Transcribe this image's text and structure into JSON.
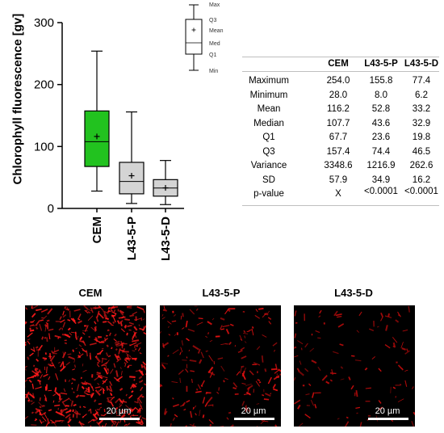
{
  "chart_data": {
    "type": "box",
    "ylabel": "Chlorophyll fluorescence [gv]",
    "ylim": [
      0,
      300
    ],
    "yticks": [
      0,
      100,
      200,
      300
    ],
    "categories": [
      "CEM",
      "L43-5-P",
      "L43-5-D"
    ],
    "colors": [
      "#22c21f",
      "#d4d4d4",
      "#d4d4d4"
    ],
    "boxes": [
      {
        "name": "CEM",
        "min": 28.0,
        "q1": 67.7,
        "median": 107.7,
        "mean": 116.2,
        "q3": 157.4,
        "max": 254.0
      },
      {
        "name": "L43-5-P",
        "min": 8.0,
        "q1": 23.6,
        "median": 43.6,
        "mean": 52.8,
        "q3": 74.4,
        "max": 155.8
      },
      {
        "name": "L43-5-D",
        "min": 6.2,
        "q1": 19.8,
        "median": 32.9,
        "mean": 33.2,
        "q3": 46.5,
        "max": 77.4
      }
    ],
    "legend": {
      "labels": [
        "Max",
        "Q3",
        "Mean",
        "Med",
        "Q1",
        "Min"
      ]
    }
  },
  "stats_table": {
    "columns": [
      "",
      "CEM",
      "L43-5-P",
      "L43-5-D"
    ],
    "rows": [
      [
        "Maximum",
        "254.0",
        "155.8",
        "77.4"
      ],
      [
        "Minimum",
        "28.0",
        "8.0",
        "6.2"
      ],
      [
        "Mean",
        "116.2",
        "52.8",
        "33.2"
      ],
      [
        "Median",
        "107.7",
        "43.6",
        "32.9"
      ],
      [
        "Q1",
        "67.7",
        "23.6",
        "19.8"
      ],
      [
        "Q3",
        "157.4",
        "74.4",
        "46.5"
      ],
      [
        "Variance",
        "3348.6",
        "1216.9",
        "262.6"
      ],
      [
        "SD",
        "57.9",
        "34.9",
        "16.2"
      ],
      [
        "p-value",
        "X",
        "<0.0001",
        "<0.0001"
      ]
    ]
  },
  "images": [
    {
      "title": "CEM",
      "scale_label": "20 µm",
      "density": 0.62,
      "color": "#ff1a1a"
    },
    {
      "title": "L43-5-P",
      "scale_label": "20 µm",
      "density": 0.22,
      "color": "#e01010"
    },
    {
      "title": "L43-5-D",
      "scale_label": "20 µm",
      "density": 0.12,
      "color": "#c80c0c"
    }
  ]
}
